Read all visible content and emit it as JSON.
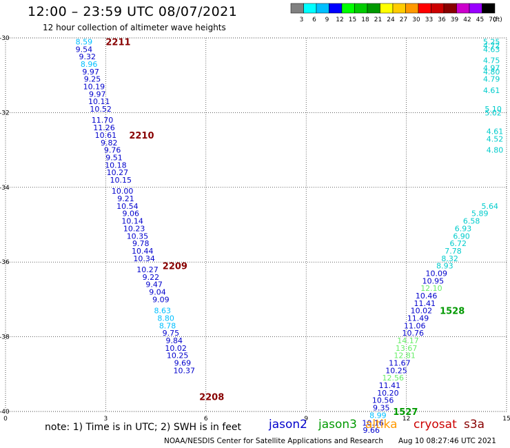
{
  "header": {
    "title": "12:00 – 23:59 UTC 08/07/2021",
    "subtitle": "12 hour collection of altimeter wave heights"
  },
  "footer": {
    "note": "note:  1) Time is in UTC;  2) SWH is in feet",
    "credit": "NOAA/NESDIS Center for Satellite Applications and Research",
    "timestamp": "Aug 10 08:27:46 UTC 2021"
  },
  "satellites": [
    {
      "name": "jason2",
      "color": "#0000cc"
    },
    {
      "name": "jason3",
      "color": "#009900"
    },
    {
      "name": "altika",
      "color": "#ff9900"
    },
    {
      "name": "cryosat",
      "color": "#cc0000"
    },
    {
      "name": "s3a",
      "color": "#880000"
    }
  ],
  "legend": {
    "colors": [
      "#808080",
      "#00ffff",
      "#00bfff",
      "#0000ff",
      "#00ff00",
      "#00cc00",
      "#009900",
      "#ffff00",
      "#ffcc00",
      "#ff9900",
      "#ff0000",
      "#cc0000",
      "#880000",
      "#cc00cc",
      "#9900ff",
      "#000000"
    ],
    "labels": [
      "3",
      "6",
      "9",
      "12",
      "15",
      "18",
      "21",
      "24",
      "27",
      "30",
      "33",
      "36",
      "39",
      "42",
      "45",
      "70"
    ],
    "unit": "(ft)"
  },
  "chart_data": {
    "type": "scatter",
    "xlim": [
      0,
      15
    ],
    "ylim": [
      -40,
      -30
    ],
    "xticks": [
      "0",
      "3",
      "6",
      "9",
      "12",
      "15"
    ],
    "yticks": [
      "-30",
      "-32",
      "-34",
      "-36",
      "-38",
      "-40"
    ],
    "grid": true,
    "pass_labels": [
      {
        "text": "2211",
        "x": 3.0,
        "y": -30.1,
        "color": "#880000"
      },
      {
        "text": "2210",
        "x": 3.7,
        "y": -32.6,
        "color": "#880000"
      },
      {
        "text": "2209",
        "x": 4.7,
        "y": -36.1,
        "color": "#880000"
      },
      {
        "text": "2208",
        "x": 5.8,
        "y": -39.6,
        "color": "#880000"
      },
      {
        "text": "1528",
        "x": 13.0,
        "y": -37.3,
        "color": "#009900"
      },
      {
        "text": "1527",
        "x": 11.6,
        "y": -40.0,
        "color": "#009900"
      }
    ],
    "points": [
      {
        "x": 2.35,
        "y": -30.1,
        "v": "8.59",
        "c": "#00bfff"
      },
      {
        "x": 2.35,
        "y": -30.3,
        "v": "9.54",
        "c": "#0000cc"
      },
      {
        "x": 2.45,
        "y": -30.5,
        "v": "9.32",
        "c": "#0000cc"
      },
      {
        "x": 2.5,
        "y": -30.7,
        "v": "8.96",
        "c": "#00bfff"
      },
      {
        "x": 2.55,
        "y": -30.9,
        "v": "9.97",
        "c": "#0000cc"
      },
      {
        "x": 2.6,
        "y": -31.1,
        "v": "9.25",
        "c": "#0000cc"
      },
      {
        "x": 2.65,
        "y": -31.3,
        "v": "10.19",
        "c": "#0000cc"
      },
      {
        "x": 2.75,
        "y": -31.5,
        "v": "9.97",
        "c": "#0000cc"
      },
      {
        "x": 2.8,
        "y": -31.7,
        "v": "10.11",
        "c": "#0000cc"
      },
      {
        "x": 2.85,
        "y": -31.9,
        "v": "10.52",
        "c": "#0000cc"
      },
      {
        "x": 2.9,
        "y": -32.2,
        "v": "11.70",
        "c": "#0000cc"
      },
      {
        "x": 2.95,
        "y": -32.4,
        "v": "11.26",
        "c": "#0000cc"
      },
      {
        "x": 3.0,
        "y": -32.6,
        "v": "10.61",
        "c": "#0000cc"
      },
      {
        "x": 3.1,
        "y": -32.8,
        "v": "9.82",
        "c": "#0000cc"
      },
      {
        "x": 3.2,
        "y": -33.0,
        "v": "9.76",
        "c": "#0000cc"
      },
      {
        "x": 3.25,
        "y": -33.2,
        "v": "9.51",
        "c": "#0000cc"
      },
      {
        "x": 3.3,
        "y": -33.4,
        "v": "10.18",
        "c": "#0000cc"
      },
      {
        "x": 3.35,
        "y": -33.6,
        "v": "10.27",
        "c": "#0000cc"
      },
      {
        "x": 3.45,
        "y": -33.8,
        "v": "10.15",
        "c": "#0000cc"
      },
      {
        "x": 3.5,
        "y": -34.1,
        "v": "10.00",
        "c": "#0000cc"
      },
      {
        "x": 3.6,
        "y": -34.3,
        "v": "9.21",
        "c": "#0000cc"
      },
      {
        "x": 3.65,
        "y": -34.5,
        "v": "10.54",
        "c": "#0000cc"
      },
      {
        "x": 3.75,
        "y": -34.7,
        "v": "9.06",
        "c": "#0000cc"
      },
      {
        "x": 3.8,
        "y": -34.9,
        "v": "10.14",
        "c": "#0000cc"
      },
      {
        "x": 3.85,
        "y": -35.1,
        "v": "10.23",
        "c": "#0000cc"
      },
      {
        "x": 3.95,
        "y": -35.3,
        "v": "10.35",
        "c": "#0000cc"
      },
      {
        "x": 4.05,
        "y": -35.5,
        "v": "9.78",
        "c": "#0000cc"
      },
      {
        "x": 4.1,
        "y": -35.7,
        "v": "10.44",
        "c": "#0000cc"
      },
      {
        "x": 4.15,
        "y": -35.9,
        "v": "10.34",
        "c": "#0000cc"
      },
      {
        "x": 4.25,
        "y": -36.2,
        "v": "10.27",
        "c": "#0000cc"
      },
      {
        "x": 4.35,
        "y": -36.4,
        "v": "9.22",
        "c": "#0000cc"
      },
      {
        "x": 4.45,
        "y": -36.6,
        "v": "9.47",
        "c": "#0000cc"
      },
      {
        "x": 4.55,
        "y": -36.8,
        "v": "9.04",
        "c": "#0000cc"
      },
      {
        "x": 4.65,
        "y": -37.0,
        "v": "9.09",
        "c": "#0000cc"
      },
      {
        "x": 4.7,
        "y": -37.3,
        "v": "8.63",
        "c": "#00bfff"
      },
      {
        "x": 4.8,
        "y": -37.5,
        "v": "8.80",
        "c": "#00bfff"
      },
      {
        "x": 4.85,
        "y": -37.7,
        "v": "8.78",
        "c": "#00bfff"
      },
      {
        "x": 4.95,
        "y": -37.9,
        "v": "9.75",
        "c": "#0000cc"
      },
      {
        "x": 5.05,
        "y": -38.1,
        "v": "9.84",
        "c": "#0000cc"
      },
      {
        "x": 5.1,
        "y": -38.3,
        "v": "10.02",
        "c": "#0000cc"
      },
      {
        "x": 5.15,
        "y": -38.5,
        "v": "10.25",
        "c": "#0000cc"
      },
      {
        "x": 5.3,
        "y": -38.7,
        "v": "9.69",
        "c": "#0000cc"
      },
      {
        "x": 5.35,
        "y": -38.9,
        "v": "10.37",
        "c": "#0000cc"
      },
      {
        "x": 14.55,
        "y": -30.1,
        "v": "5.25",
        "c": "#00cccc"
      },
      {
        "x": 14.55,
        "y": -30.2,
        "v": "4.72",
        "c": "#00cccc"
      },
      {
        "x": 14.55,
        "y": -30.3,
        "v": "4.63",
        "c": "#00cccc"
      },
      {
        "x": 14.55,
        "y": -30.6,
        "v": "4.75",
        "c": "#00cccc"
      },
      {
        "x": 14.55,
        "y": -30.8,
        "v": "4.97",
        "c": "#00cccc"
      },
      {
        "x": 14.55,
        "y": -30.9,
        "v": "4.80",
        "c": "#00cccc"
      },
      {
        "x": 14.55,
        "y": -31.1,
        "v": "4.79",
        "c": "#00cccc"
      },
      {
        "x": 14.55,
        "y": -31.4,
        "v": "4.61",
        "c": "#00cccc"
      },
      {
        "x": 14.6,
        "y": -31.9,
        "v": "5.10",
        "c": "#00cccc"
      },
      {
        "x": 14.6,
        "y": -32.0,
        "v": "5.02",
        "c": "#00cccc"
      },
      {
        "x": 14.65,
        "y": -32.5,
        "v": "4.61",
        "c": "#00cccc"
      },
      {
        "x": 14.65,
        "y": -32.7,
        "v": "4.52",
        "c": "#00cccc"
      },
      {
        "x": 14.65,
        "y": -33.0,
        "v": "4.80",
        "c": "#00cccc"
      },
      {
        "x": 14.5,
        "y": -34.5,
        "v": "5.64",
        "c": "#00cccc"
      },
      {
        "x": 14.2,
        "y": -34.7,
        "v": "5.89",
        "c": "#00cccc"
      },
      {
        "x": 13.95,
        "y": -34.9,
        "v": "6.58",
        "c": "#00cccc"
      },
      {
        "x": 13.7,
        "y": -35.1,
        "v": "6.93",
        "c": "#00cccc"
      },
      {
        "x": 13.65,
        "y": -35.3,
        "v": "6.90",
        "c": "#00cccc"
      },
      {
        "x": 13.55,
        "y": -35.5,
        "v": "6.72",
        "c": "#00cccc"
      },
      {
        "x": 13.4,
        "y": -35.7,
        "v": "7.78",
        "c": "#00cccc"
      },
      {
        "x": 13.3,
        "y": -35.9,
        "v": "8.32",
        "c": "#00cccc"
      },
      {
        "x": 13.15,
        "y": -36.1,
        "v": "8.93",
        "c": "#00cccc"
      },
      {
        "x": 12.9,
        "y": -36.3,
        "v": "10.09",
        "c": "#0000cc"
      },
      {
        "x": 12.8,
        "y": -36.5,
        "v": "10.95",
        "c": "#0000cc"
      },
      {
        "x": 12.75,
        "y": -36.7,
        "v": "12.10",
        "c": "#66ee66"
      },
      {
        "x": 12.6,
        "y": -36.9,
        "v": "10.46",
        "c": "#0000cc"
      },
      {
        "x": 12.55,
        "y": -37.1,
        "v": "11.41",
        "c": "#0000cc"
      },
      {
        "x": 12.45,
        "y": -37.3,
        "v": "10.02",
        "c": "#0000cc"
      },
      {
        "x": 12.35,
        "y": -37.5,
        "v": "11.49",
        "c": "#0000cc"
      },
      {
        "x": 12.25,
        "y": -37.7,
        "v": "11.06",
        "c": "#0000cc"
      },
      {
        "x": 12.2,
        "y": -37.9,
        "v": "10.76",
        "c": "#0000cc"
      },
      {
        "x": 12.05,
        "y": -38.1,
        "v": "14.17",
        "c": "#66ee66"
      },
      {
        "x": 12.0,
        "y": -38.3,
        "v": "13.67",
        "c": "#66ee66"
      },
      {
        "x": 11.95,
        "y": -38.5,
        "v": "12.81",
        "c": "#66ee66"
      },
      {
        "x": 11.8,
        "y": -38.7,
        "v": "11.67",
        "c": "#0000cc"
      },
      {
        "x": 11.7,
        "y": -38.9,
        "v": "10.25",
        "c": "#0000cc"
      },
      {
        "x": 11.6,
        "y": -39.1,
        "v": "12.56",
        "c": "#66ee66"
      },
      {
        "x": 11.5,
        "y": -39.3,
        "v": "11.41",
        "c": "#0000cc"
      },
      {
        "x": 11.45,
        "y": -39.5,
        "v": "10.20",
        "c": "#0000cc"
      },
      {
        "x": 11.3,
        "y": -39.7,
        "v": "10.56",
        "c": "#0000cc"
      },
      {
        "x": 11.25,
        "y": -39.9,
        "v": "9.35",
        "c": "#0000cc"
      },
      {
        "x": 11.15,
        "y": -40.1,
        "v": "8.99",
        "c": "#00bfff"
      },
      {
        "x": 11.0,
        "y": -40.3,
        "v": "10.16",
        "c": "#0000cc"
      },
      {
        "x": 10.95,
        "y": -40.5,
        "v": "9.66",
        "c": "#0000cc"
      }
    ]
  }
}
